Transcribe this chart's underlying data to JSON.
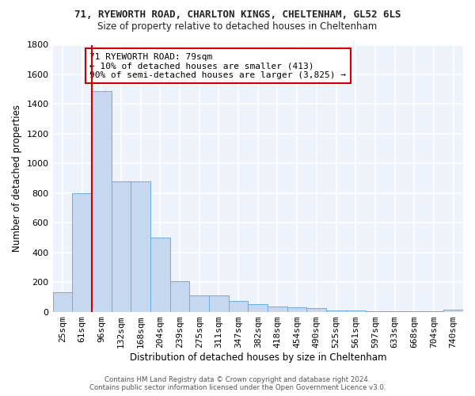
{
  "title1": "71, RYEWORTH ROAD, CHARLTON KINGS, CHELTENHAM, GL52 6LS",
  "title2": "Size of property relative to detached houses in Cheltenham",
  "xlabel": "Distribution of detached houses by size in Cheltenham",
  "ylabel": "Number of detached properties",
  "categories": [
    "25sqm",
    "61sqm",
    "96sqm",
    "132sqm",
    "168sqm",
    "204sqm",
    "239sqm",
    "275sqm",
    "311sqm",
    "347sqm",
    "382sqm",
    "418sqm",
    "454sqm",
    "490sqm",
    "525sqm",
    "561sqm",
    "597sqm",
    "633sqm",
    "668sqm",
    "704sqm",
    "740sqm"
  ],
  "values": [
    130,
    800,
    1490,
    880,
    880,
    500,
    205,
    110,
    110,
    70,
    50,
    35,
    30,
    25,
    10,
    8,
    5,
    4,
    3,
    2,
    15
  ],
  "bar_color": "#c5d8f0",
  "bar_edge_color": "#6aaee0",
  "vline_x": 1.5,
  "vline_color": "#cc0000",
  "annotation_text": "71 RYEWORTH ROAD: 79sqm\n← 10% of detached houses are smaller (413)\n90% of semi-detached houses are larger (3,825) →",
  "annotation_box_color": "#ffffff",
  "annotation_box_edge_color": "#cc0000",
  "bg_color": "#eef2fb",
  "grid_color": "#ffffff",
  "ylim": [
    0,
    1800
  ],
  "yticks": [
    0,
    200,
    400,
    600,
    800,
    1000,
    1200,
    1400,
    1600,
    1800
  ],
  "footer1": "Contains HM Land Registry data © Crown copyright and database right 2024.",
  "footer2": "Contains public sector information licensed under the Open Government Licence v3.0."
}
